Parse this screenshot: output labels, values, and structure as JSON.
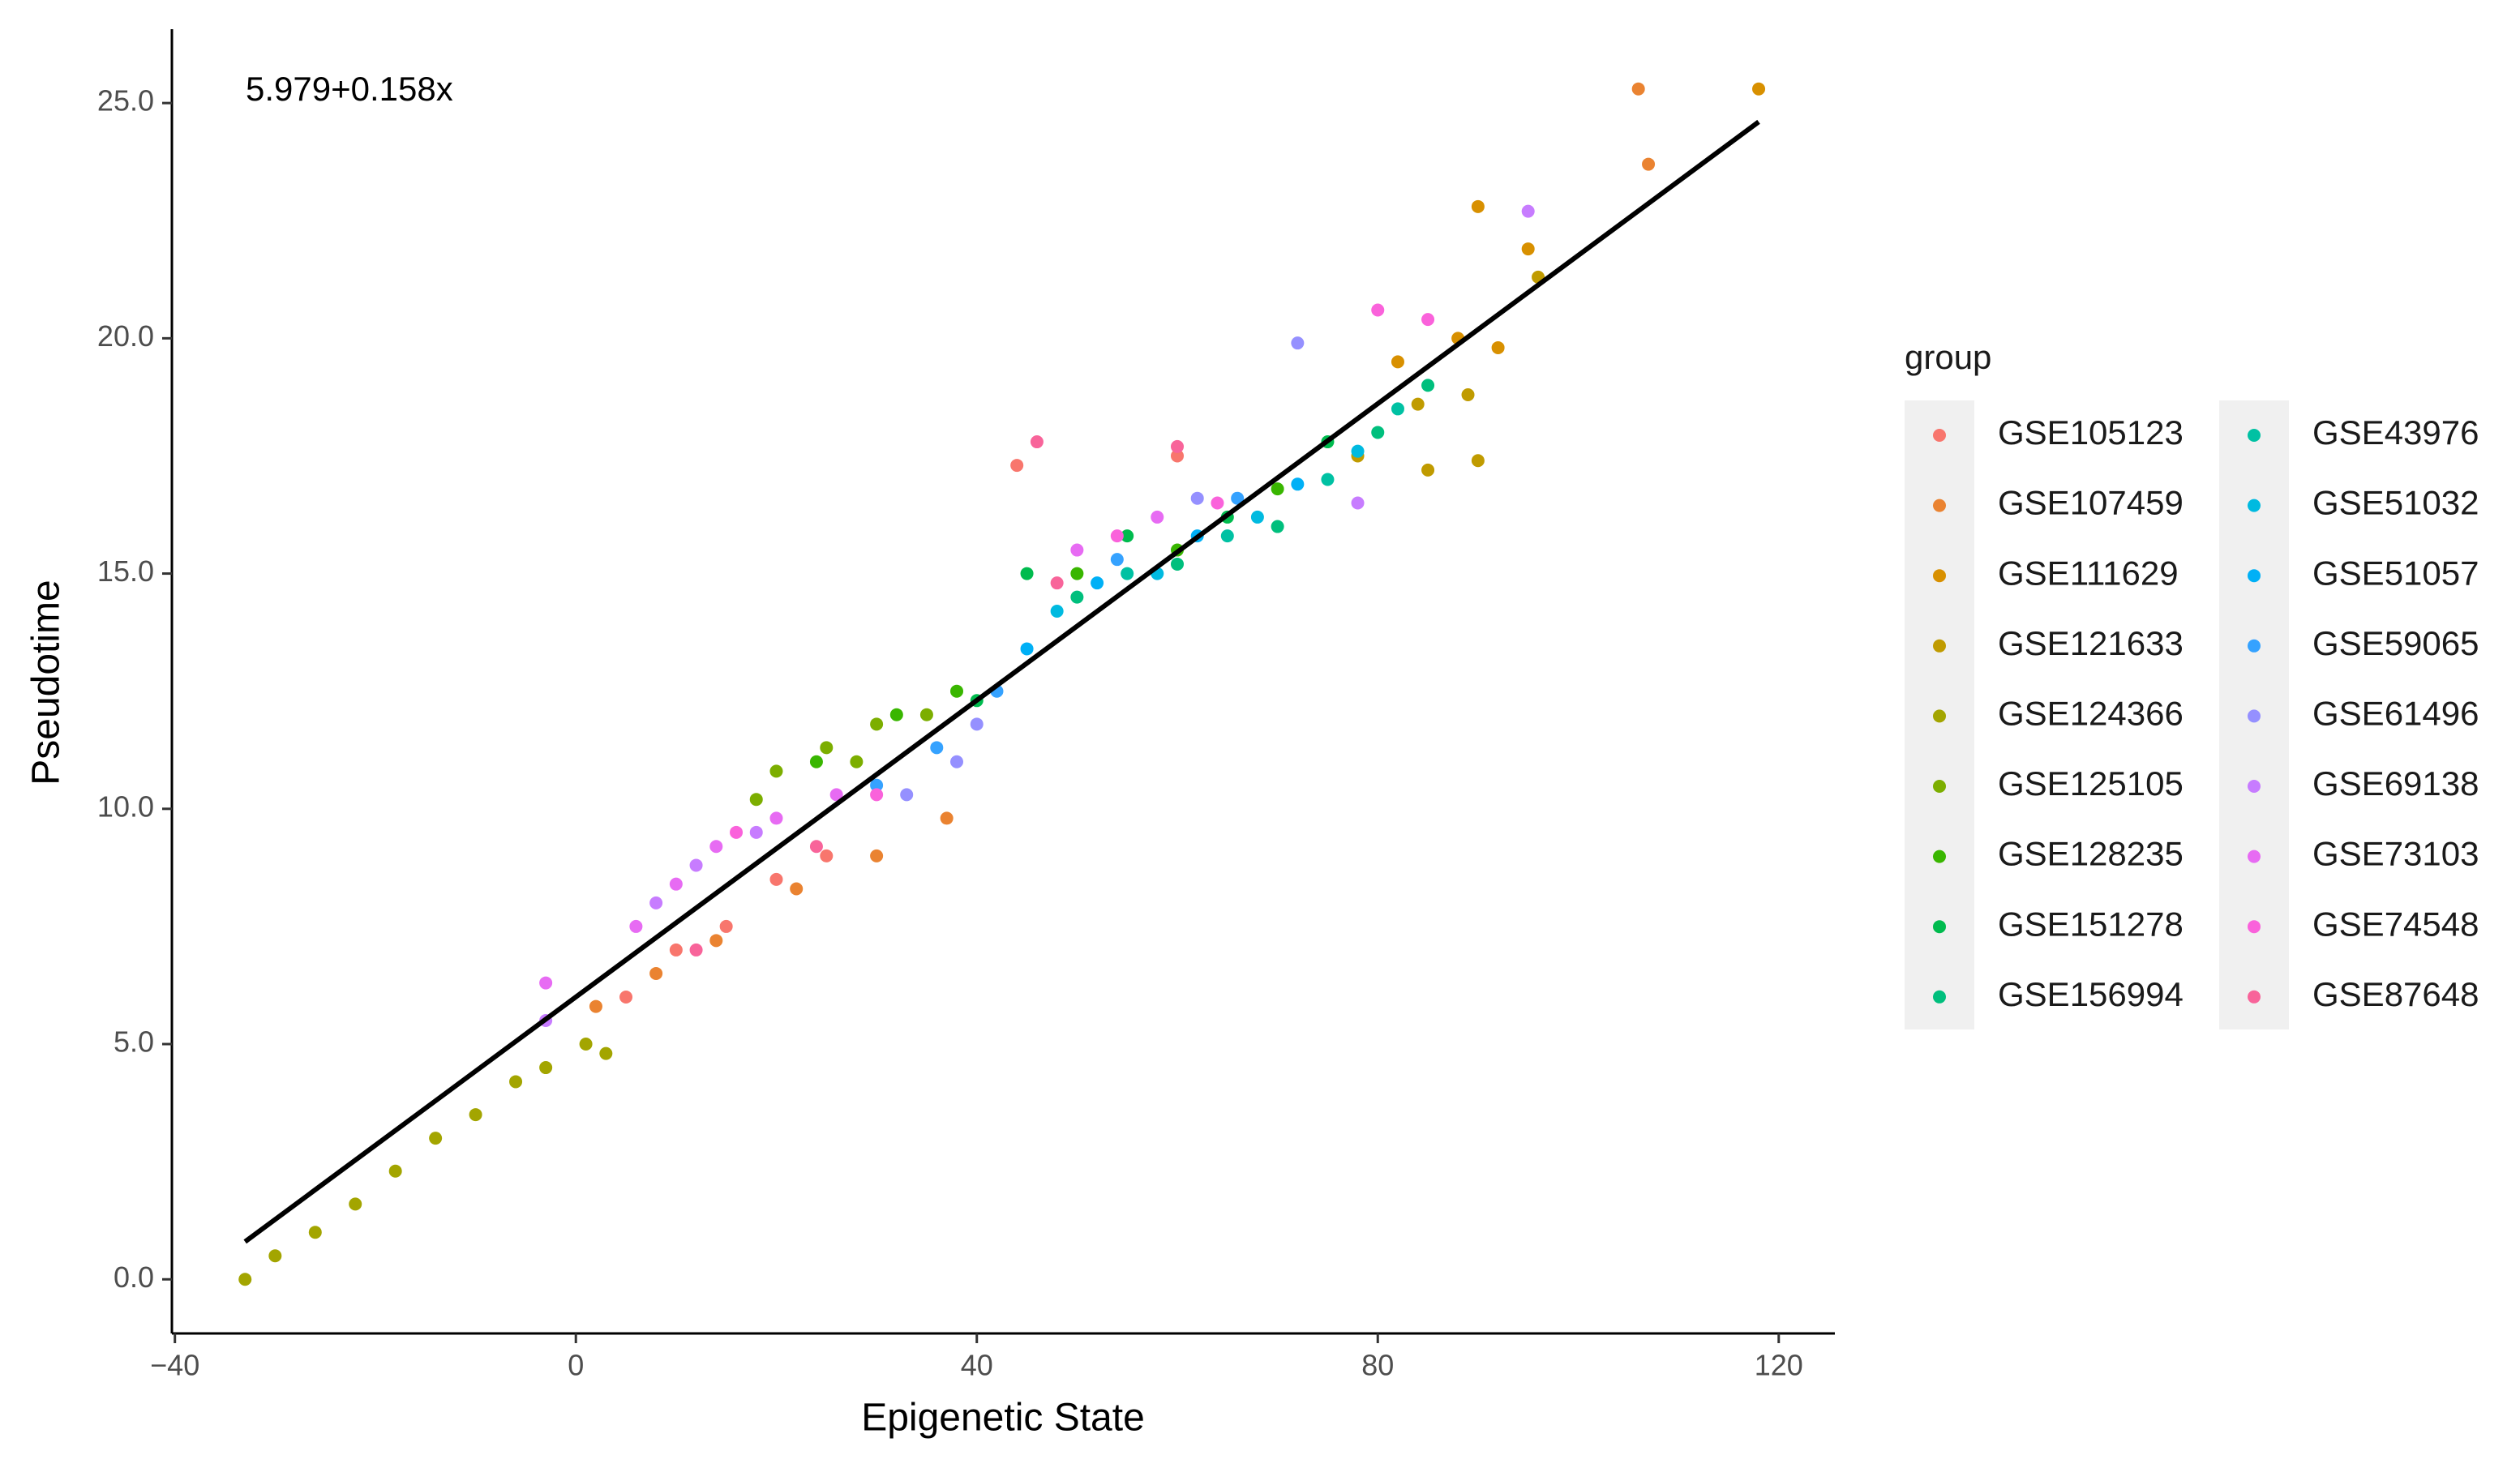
{
  "chart_data": {
    "type": "scatter",
    "annotation": "5.979+0.158x",
    "x_label": "Epigenetic State",
    "y_label": "Pseudotime",
    "legend_title": "group",
    "xlim": [
      -40.3,
      125.6
    ],
    "ylim": [
      -1.15,
      26.57
    ],
    "xticks": [
      {
        "value": -40,
        "label": "−40"
      },
      0,
      40,
      80,
      120
    ],
    "yticks": [
      {
        "value": 0,
        "label": "0.0"
      },
      {
        "value": 5,
        "label": "5.0"
      },
      {
        "value": 10,
        "label": "10.0"
      },
      {
        "value": 15,
        "label": "15.0"
      },
      {
        "value": 20,
        "label": "20.0"
      },
      {
        "value": 25,
        "label": "25.0"
      }
    ],
    "fit_line": {
      "color": "#000000",
      "x": [
        -33,
        118
      ],
      "y": [
        0.8,
        24.6
      ]
    },
    "series": [
      {
        "name": "GSE105123",
        "color": "#F8766D",
        "x": [
          5,
          10,
          15,
          20,
          25,
          44,
          60
        ],
        "y": [
          6,
          7,
          7.5,
          8.5,
          9,
          17.3,
          17.5
        ]
      },
      {
        "name": "GSE107459",
        "color": "#EA8331",
        "x": [
          2,
          8,
          14,
          22,
          30,
          37,
          106,
          107
        ],
        "y": [
          5.8,
          6.5,
          7.2,
          8.3,
          9,
          9.8,
          25.3,
          23.7
        ]
      },
      {
        "name": "GSE111629",
        "color": "#D89000",
        "x": [
          82,
          88,
          90,
          95,
          118,
          92
        ],
        "y": [
          19.5,
          20,
          22.8,
          21.9,
          25.3,
          19.8
        ]
      },
      {
        "name": "GSE121633",
        "color": "#C09B00",
        "x": [
          78,
          84,
          89,
          85,
          96,
          90
        ],
        "y": [
          17.5,
          18.6,
          18.8,
          17.2,
          21.3,
          17.4
        ]
      },
      {
        "name": "GSE124366",
        "color": "#A3A500",
        "x": [
          -33,
          -30,
          -26,
          -22,
          -18,
          -14,
          -10,
          -6,
          -3,
          1,
          3
        ],
        "y": [
          0,
          0.5,
          1,
          1.6,
          2.3,
          3,
          3.5,
          4.2,
          4.5,
          5,
          4.8
        ]
      },
      {
        "name": "GSE125105",
        "color": "#7CAE00",
        "x": [
          20,
          25,
          30,
          35,
          18,
          28
        ],
        "y": [
          10.8,
          11.3,
          11.8,
          12,
          10.2,
          11
        ]
      },
      {
        "name": "GSE128235",
        "color": "#39B600",
        "x": [
          24,
          32,
          38,
          50,
          60,
          70
        ],
        "y": [
          11,
          12,
          12.5,
          15,
          15.5,
          16.8
        ]
      },
      {
        "name": "GSE151278",
        "color": "#00BB4E",
        "x": [
          45,
          55,
          65,
          75,
          40
        ],
        "y": [
          15,
          15.8,
          16.2,
          17.8,
          12.3
        ]
      },
      {
        "name": "GSE156994",
        "color": "#00BF7D",
        "x": [
          50,
          60,
          70,
          80,
          85
        ],
        "y": [
          14.5,
          15.2,
          16,
          18,
          19
        ]
      },
      {
        "name": "GSE43976",
        "color": "#00C1A3",
        "x": [
          55,
          65,
          75,
          82
        ],
        "y": [
          15,
          15.8,
          17,
          18.5
        ]
      },
      {
        "name": "GSE51032",
        "color": "#00BAE0",
        "x": [
          48,
          58,
          68,
          78
        ],
        "y": [
          14.2,
          15,
          16.2,
          17.6
        ]
      },
      {
        "name": "GSE51057",
        "color": "#00B0F6",
        "x": [
          52,
          62,
          72,
          45
        ],
        "y": [
          14.8,
          15.8,
          16.9,
          13.4
        ]
      },
      {
        "name": "GSE59065",
        "color": "#35A2FF",
        "x": [
          30,
          36,
          42,
          54,
          66
        ],
        "y": [
          10.5,
          11.3,
          12.5,
          15.3,
          16.6
        ]
      },
      {
        "name": "GSE61496",
        "color": "#9590FF",
        "x": [
          33,
          38,
          62,
          72,
          40
        ],
        "y": [
          10.3,
          11,
          16.6,
          19.9,
          11.8
        ]
      },
      {
        "name": "GSE69138",
        "color": "#C77CFF",
        "x": [
          8,
          12,
          18,
          95,
          78,
          -3
        ],
        "y": [
          8,
          8.8,
          9.5,
          22.7,
          16.5,
          5.5
        ]
      },
      {
        "name": "GSE73103",
        "color": "#E76BF3",
        "x": [
          6,
          10,
          14,
          20,
          26,
          50,
          58,
          -3
        ],
        "y": [
          7.5,
          8.4,
          9.2,
          9.8,
          10.3,
          15.5,
          16.2,
          6.3
        ]
      },
      {
        "name": "GSE74548",
        "color": "#FA62DB",
        "x": [
          16,
          30,
          54,
          64,
          80,
          85
        ],
        "y": [
          9.5,
          10.3,
          15.8,
          16.5,
          20.6,
          20.4
        ]
      },
      {
        "name": "GSE87648",
        "color": "#F8649A",
        "x": [
          12,
          24,
          48,
          60,
          46
        ],
        "y": [
          7,
          9.2,
          14.8,
          17.7,
          17.8
        ]
      }
    ]
  }
}
